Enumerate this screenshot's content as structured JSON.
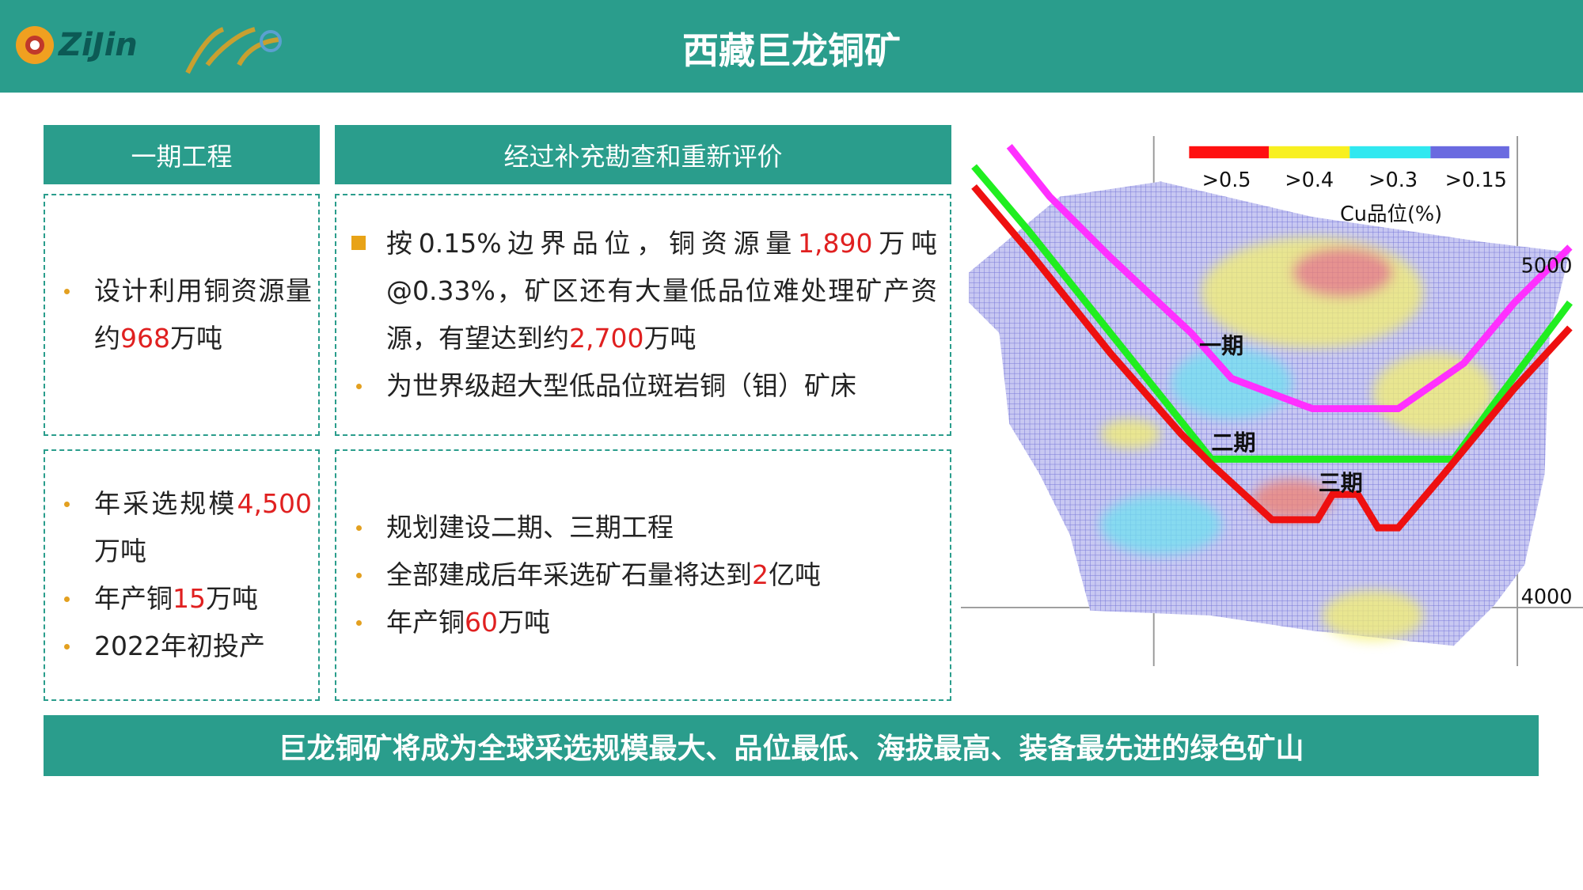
{
  "header": {
    "logo": "ZiJin",
    "title": "西藏巨龙铜矿"
  },
  "columns": [
    {
      "heading": "一期工程",
      "boxes": [
        {
          "items": [
            [
              "设计利用铜资源量约",
              "968",
              "万吨"
            ]
          ]
        },
        {
          "items": [
            [
              "年采选规模",
              "4,500",
              "万吨"
            ],
            [
              "年产铜",
              "15",
              "万吨"
            ],
            [
              "2022年初投产"
            ]
          ]
        }
      ]
    },
    {
      "heading": "经过补充勘查和重新评价",
      "boxes": [
        {
          "items": [
            [
              "按0.15%边界品位，铜资源量",
              "1,890",
              "万吨@0.33%，矿区还有大量低品位难处理矿产资源，有望达到约",
              "2,700",
              "万吨"
            ],
            [
              "为世界级超大型低品位斑岩铜（钼）矿床"
            ]
          ]
        },
        {
          "items": [
            [
              "规划建设二期、三期工程"
            ],
            [
              "全部建成后年采选矿石量将达到",
              "2",
              "亿吨"
            ],
            [
              "年产铜",
              "60",
              "万吨"
            ]
          ]
        }
      ]
    }
  ],
  "figure": {
    "legend": [
      ">0.5",
      ">0.4",
      ">0.3",
      ">0.15"
    ],
    "legend_title": "Cu品位(%)",
    "elevations": [
      "5000",
      "4000"
    ],
    "phases": [
      "一期",
      "二期",
      "三期"
    ]
  },
  "footer": "巨龙铜矿将成为全球采选规模最大、品位最低、海拔最高、装备最先进的绿色矿山"
}
